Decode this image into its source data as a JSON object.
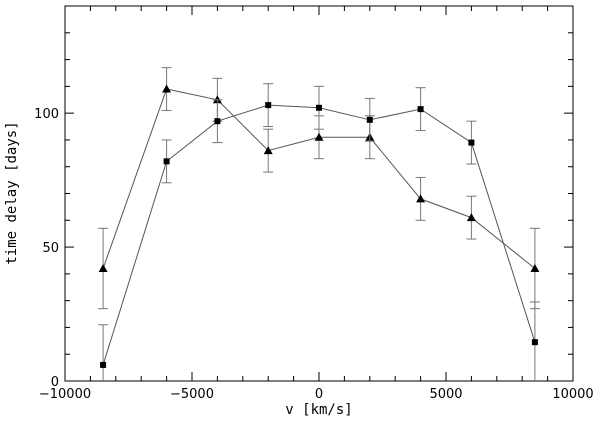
{
  "chart_data": {
    "type": "scatter",
    "title": "",
    "xlabel": "v [km/s]",
    "ylabel": "time delay [days]",
    "xlim": [
      -10000,
      10000
    ],
    "ylim": [
      0,
      140
    ],
    "x_ticks": [
      -10000,
      -5000,
      0,
      5000,
      10000
    ],
    "y_ticks": [
      0,
      50,
      100
    ],
    "x_tick_labels": [
      "−10000",
      "−5000",
      "0",
      "5000",
      "10000"
    ],
    "y_tick_labels": [
      "0",
      "50",
      "100"
    ],
    "grid": false,
    "legend": "none",
    "series": [
      {
        "marker": "triangle",
        "color": "#000000",
        "points": [
          {
            "x": -8500,
            "y": 42,
            "err": 15
          },
          {
            "x": -6000,
            "y": 109,
            "err": 8
          },
          {
            "x": -4000,
            "y": 105,
            "err": 8
          },
          {
            "x": -2000,
            "y": 86,
            "err": 8
          },
          {
            "x": 0,
            "y": 91,
            "err": 8
          },
          {
            "x": 2000,
            "y": 91,
            "err": 8
          },
          {
            "x": 4000,
            "y": 68,
            "err": 8
          },
          {
            "x": 6000,
            "y": 61,
            "err": 8
          },
          {
            "x": 8500,
            "y": 42,
            "err": 15
          }
        ]
      },
      {
        "marker": "square",
        "color": "#000000",
        "points": [
          {
            "x": -8500,
            "y": 6,
            "err": 15
          },
          {
            "x": -6000,
            "y": 82,
            "err": 8
          },
          {
            "x": -4000,
            "y": 97,
            "err": 8
          },
          {
            "x": -2000,
            "y": 103,
            "err": 8
          },
          {
            "x": 0,
            "y": 102,
            "err": 8
          },
          {
            "x": 2000,
            "y": 97.5,
            "err": 8
          },
          {
            "x": 4000,
            "y": 101.5,
            "err": 8
          },
          {
            "x": 6000,
            "y": 89,
            "err": 8
          },
          {
            "x": 8500,
            "y": 14.5,
            "err": 15
          }
        ]
      }
    ]
  }
}
